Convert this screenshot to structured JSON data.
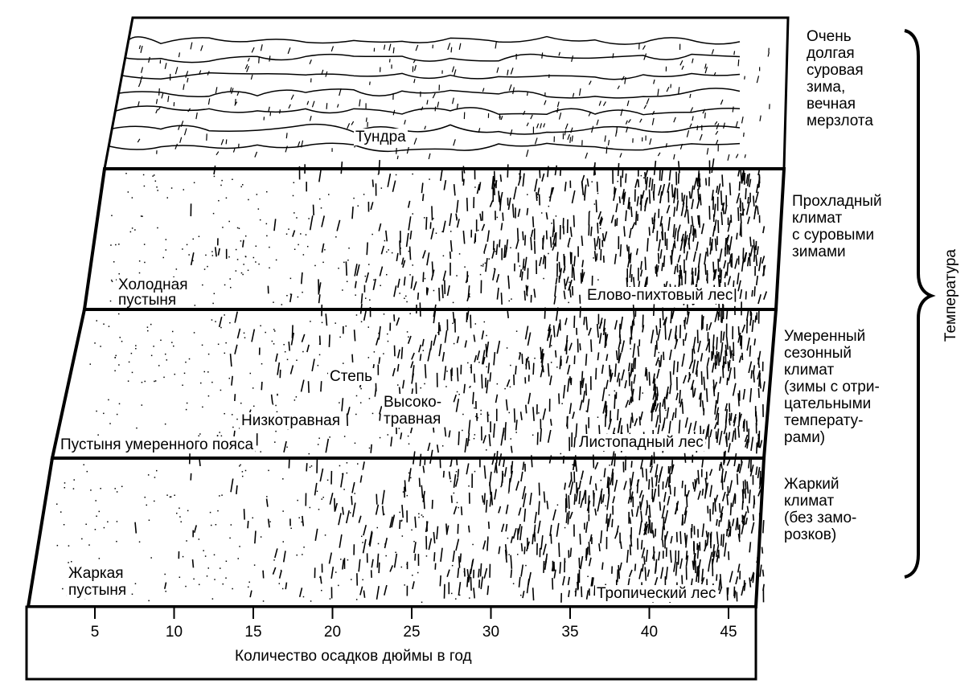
{
  "biomes": {
    "tundra": "Тундра",
    "cold_desert": "Холодная\nпустыня",
    "spruce_fir_forest": "Елово-пихтовый лес",
    "steppe": "Степь",
    "tall_grass": "Высоко-\nтравная",
    "short_grass": "Низкотравная",
    "temperate_desert": "Пустыня умеренного пояса",
    "deciduous_forest": "Листопадный лес",
    "hot_desert": "Жаркая\nпустыня",
    "tropical_forest": "Тропический лес"
  },
  "climates": [
    "Очень\nдолгая\nсуровая\nзима,\nвечная\nмерзлота",
    "Прохладный\nклимат\nс суровыми\nзимами",
    "Умеренный\nсезонный\nклимат\n(зимы с отри-\nцательными\nтемперату-\nрами)",
    "Жаркий\nклимат\n(без замо-\nрозков)"
  ],
  "temperature_label": "Температура",
  "axis": {
    "ticks": [
      "5",
      "10",
      "15",
      "20",
      "25",
      "30",
      "35",
      "40",
      "45"
    ],
    "title": "Количество осадков  дюймы в год"
  }
}
